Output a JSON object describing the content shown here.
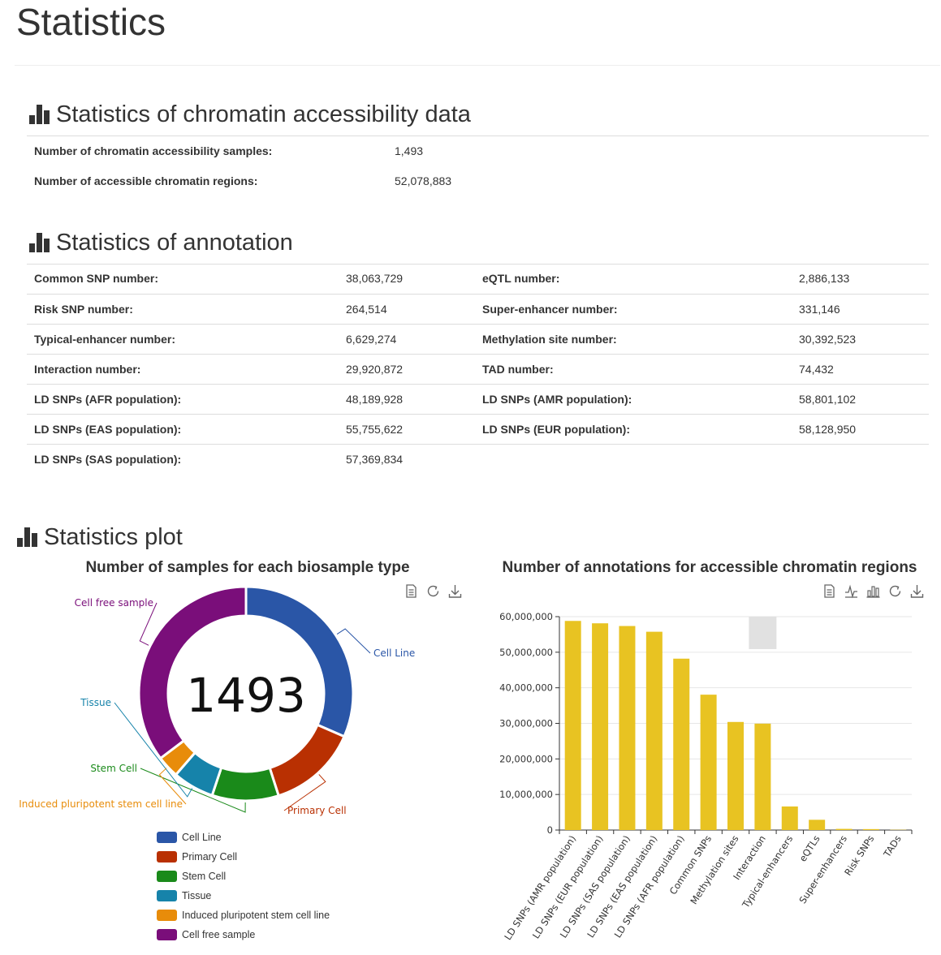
{
  "page": {
    "title": "Statistics"
  },
  "chromatin": {
    "heading": "Statistics of chromatin accessibility data",
    "rows": [
      {
        "label": "Number of chromatin accessibility samples:",
        "value": "1,493"
      },
      {
        "label": "Number of accessible chromatin regions:",
        "value": "52,078,883"
      }
    ]
  },
  "annotation": {
    "heading": "Statistics of annotation",
    "rows": [
      {
        "l1": "Common SNP number:",
        "v1": "38,063,729",
        "l2": "eQTL number:",
        "v2": "2,886,133"
      },
      {
        "l1": "Risk SNP number:",
        "v1": "264,514",
        "l2": "Super-enhancer number:",
        "v2": "331,146"
      },
      {
        "l1": "Typical-enhancer number:",
        "v1": "6,629,274",
        "l2": "Methylation site number:",
        "v2": "30,392,523"
      },
      {
        "l1": "Interaction number:",
        "v1": "29,920,872",
        "l2": "TAD number:",
        "v2": "74,432"
      },
      {
        "l1": "LD SNPs (AFR population):",
        "v1": "48,189,928",
        "l2": "LD SNPs (AMR population):",
        "v2": "58,801,102"
      },
      {
        "l1": "LD SNPs (EAS population):",
        "v1": "55,755,622",
        "l2": "LD SNPs (EUR population):",
        "v2": "58,128,950"
      },
      {
        "l1": "LD SNPs (SAS population):",
        "v1": "57,369,834",
        "l2": "",
        "v2": ""
      }
    ]
  },
  "plot": {
    "heading": "Statistics plot",
    "icons": [
      "bar-chart-icon",
      "data-view-icon",
      "restore-icon",
      "download-icon",
      "line-switch-icon",
      "bar-switch-icon"
    ]
  },
  "chart_data": [
    {
      "type": "pie",
      "title": "Number of samples for each biosample type",
      "center_label": "1493",
      "categories": [
        "Cell Line",
        "Primary Cell",
        "Stem Cell",
        "Tissue",
        "Induced pluripotent stem cell line",
        "Cell free sample"
      ],
      "values": [
        471,
        202,
        150,
        93,
        50,
        527
      ],
      "colors": [
        "#2a56a7",
        "#b93002",
        "#1a8a1a",
        "#1683aa",
        "#e88c0a",
        "#7a0e7a"
      ],
      "legend_position": "bottom"
    },
    {
      "type": "bar",
      "title": "Number of annotations for accessible chromatin regions",
      "categories": [
        "LD SNPs (AMR population)",
        "LD SNPs (EUR population)",
        "LD SNPs (SAS population)",
        "LD SNPs (EAS population)",
        "LD SNPs (AFR population)",
        "Common SNPs",
        "Methylation sites",
        "Interaction",
        "Typical-enhancers",
        "eQTLs",
        "Super-enhancers",
        "Risk SNPs",
        "TADs"
      ],
      "values": [
        58801102,
        58128950,
        57369834,
        55755622,
        48189928,
        38063729,
        30392523,
        29920872,
        6629274,
        2886133,
        331146,
        264514,
        74432
      ],
      "ylim": [
        0,
        60000000
      ],
      "yticks": [
        "0",
        "10,000,000",
        "20,000,000",
        "30,000,000",
        "40,000,000",
        "50,000,000",
        "60,000,000"
      ],
      "color": "#e8c322",
      "grid": true
    }
  ]
}
